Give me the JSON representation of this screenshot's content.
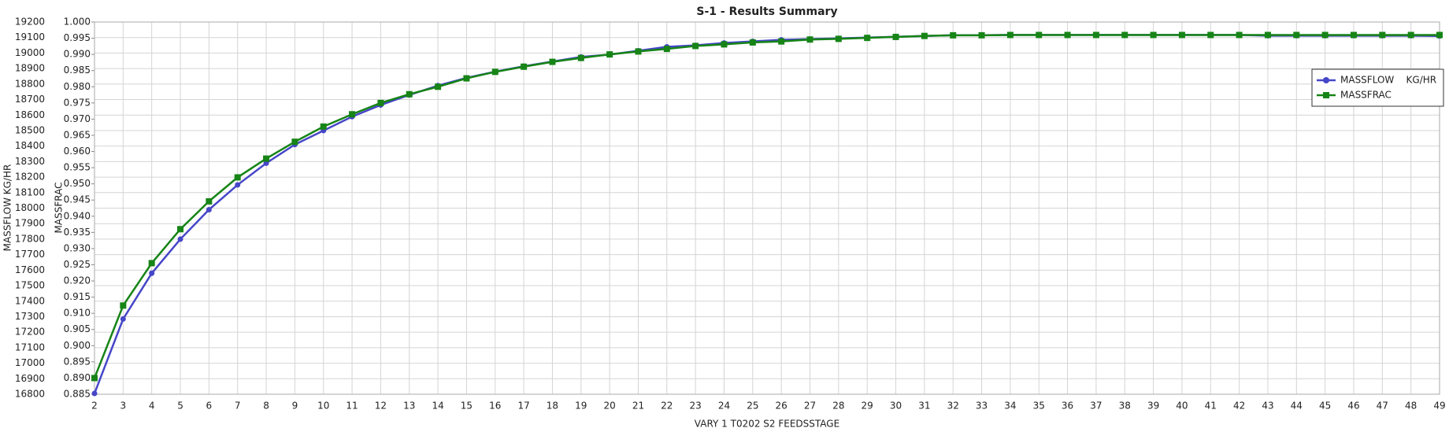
{
  "chart_data": {
    "type": "line",
    "title": "S-1 - Results Summary",
    "x_label": "VARY   1 T0202    S2       FEEDSSTAGE",
    "y_label": "MASSFLOW    KG/HR",
    "y2_label": "MASSFRAC",
    "x": [
      2,
      3,
      4,
      5,
      6,
      7,
      8,
      9,
      10,
      11,
      12,
      13,
      14,
      15,
      16,
      17,
      18,
      19,
      20,
      21,
      22,
      23,
      24,
      25,
      26,
      27,
      28,
      29,
      30,
      31,
      32,
      33,
      34,
      35,
      36,
      37,
      38,
      39,
      40,
      41,
      42,
      43,
      44,
      45,
      46,
      47,
      48,
      49
    ],
    "xlim": [
      2,
      49
    ],
    "xticks": [
      2,
      3,
      4,
      5,
      6,
      7,
      8,
      9,
      10,
      11,
      12,
      13,
      14,
      15,
      16,
      17,
      18,
      19,
      20,
      21,
      22,
      23,
      24,
      25,
      26,
      27,
      28,
      29,
      30,
      31,
      32,
      33,
      34,
      35,
      36,
      37,
      38,
      39,
      40,
      41,
      42,
      43,
      44,
      45,
      46,
      47,
      48,
      49
    ],
    "ylim": [
      16800,
      19200
    ],
    "yticks": [
      16800,
      16900,
      17000,
      17100,
      17200,
      17300,
      17400,
      17500,
      17600,
      17700,
      17800,
      17900,
      18000,
      18100,
      18200,
      18300,
      18400,
      18500,
      18600,
      18700,
      18800,
      18900,
      19000,
      19100,
      19200
    ],
    "y2lim": [
      0.885,
      1.0
    ],
    "y2ticks": [
      0.885,
      {
        "value": 0.89,
        "label": "0.890"
      },
      0.895,
      {
        "value": 0.9,
        "label": "0.900"
      },
      0.905,
      {
        "value": 0.91,
        "label": "0.910"
      },
      0.915,
      {
        "value": 0.92,
        "label": "0.920"
      },
      0.925,
      {
        "value": 0.93,
        "label": "0.930"
      },
      0.935,
      {
        "value": 0.94,
        "label": "0.940"
      },
      0.945,
      {
        "value": 0.95,
        "label": "0.950"
      },
      0.955,
      {
        "value": 0.96,
        "label": "0.960"
      },
      0.965,
      {
        "value": 0.97,
        "label": "0.970"
      },
      0.975,
      {
        "value": 0.98,
        "label": "0.980"
      },
      0.985,
      {
        "value": 0.99,
        "label": "0.990"
      },
      0.995,
      {
        "value": 1,
        "label": "1.000"
      }
    ],
    "grid": true,
    "legend": "upper right",
    "series": [
      {
        "name": "MASSFLOW    KG/HR",
        "color": "#4646c8",
        "marker": "circle",
        "values": [
          16805,
          17285,
          17580,
          17800,
          17990,
          18150,
          18290,
          18410,
          18500,
          18590,
          18665,
          18730,
          18790,
          18840,
          18880,
          18915,
          18945,
          18975,
          18990,
          19015,
          19040,
          19050,
          19065,
          19075,
          19085,
          19090,
          19095,
          19100,
          19105,
          19110,
          19115,
          19115,
          19117,
          19117,
          19117,
          19117,
          19117,
          19117,
          19117,
          19117,
          19117,
          19112,
          19112,
          19112,
          19112,
          19112,
          19112,
          19110
        ]
      },
      {
        "name": "MASSFRAC",
        "color": "#168416",
        "marker": "square",
        "axis": "y2",
        "values": [
          0.89,
          0.9124,
          0.9255,
          0.936,
          0.9446,
          0.952,
          0.9578,
          0.963,
          0.9677,
          0.9715,
          0.975,
          0.9777,
          0.98,
          0.9826,
          0.9846,
          0.9862,
          0.9877,
          0.9889,
          0.99,
          0.9909,
          0.9917,
          0.9926,
          0.9931,
          0.9937,
          0.994,
          0.9946,
          0.9948,
          0.9951,
          0.9954,
          0.9957,
          0.9959,
          0.9959,
          0.996,
          0.996,
          0.996,
          0.996,
          0.996,
          0.996,
          0.996,
          0.996,
          0.996,
          0.996,
          0.996,
          0.996,
          0.996,
          0.996,
          0.996,
          0.996
        ]
      }
    ]
  }
}
